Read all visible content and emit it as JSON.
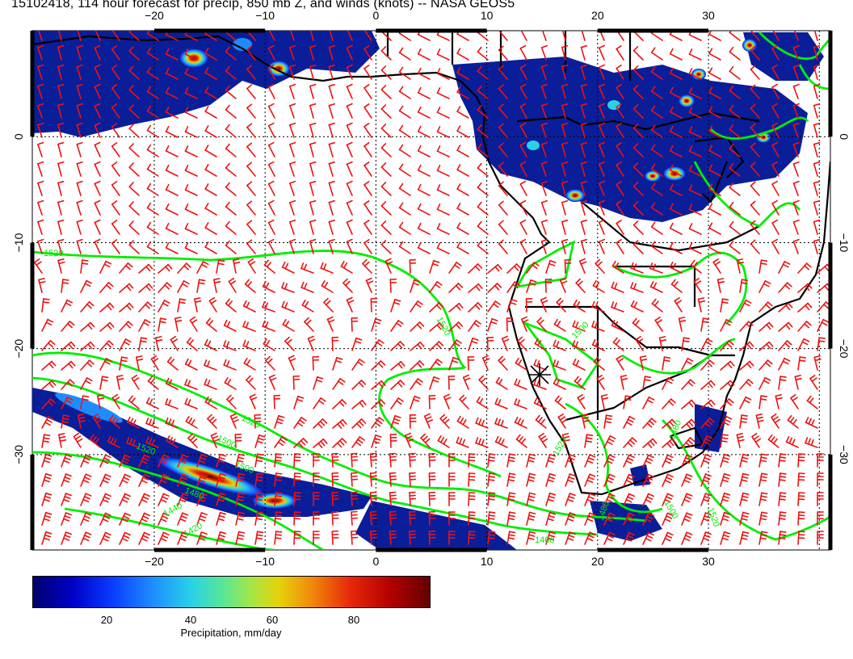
{
  "title": "15102418, 114 hour forecast for precip, 850 mb Z, and winds (knots) -- NASA GEOS5",
  "map": {
    "lon_ticks_bottom": [
      "−20",
      "−10",
      "0",
      "10",
      "20",
      "30"
    ],
    "lon_ticks_top": [
      "−20",
      "−10",
      "0",
      "10",
      "20",
      "30"
    ],
    "lat_ticks_left": [
      "0",
      "−10",
      "−20",
      "−30"
    ],
    "lat_ticks_right": [
      "0",
      "−10",
      "−20",
      "−30"
    ],
    "lon_range": [
      -31,
      41
    ],
    "lat_range": [
      -39,
      10
    ],
    "contour_labels": [
      "1520",
      "1520",
      "1520",
      "1500",
      "1520",
      "1500",
      "1520",
      "1480",
      "1500",
      "1520",
      "1480",
      "1480",
      "1460",
      "1440",
      "1420",
      "1500"
    ],
    "colors": {
      "wind_barbs": "#ee1111",
      "contours": "#00ee00",
      "coastline": "#000000"
    }
  },
  "colorbar": {
    "ticks": [
      "20",
      "40",
      "60",
      "80"
    ],
    "label": "Precipitation, mm/day",
    "range": [
      0,
      100
    ]
  }
}
